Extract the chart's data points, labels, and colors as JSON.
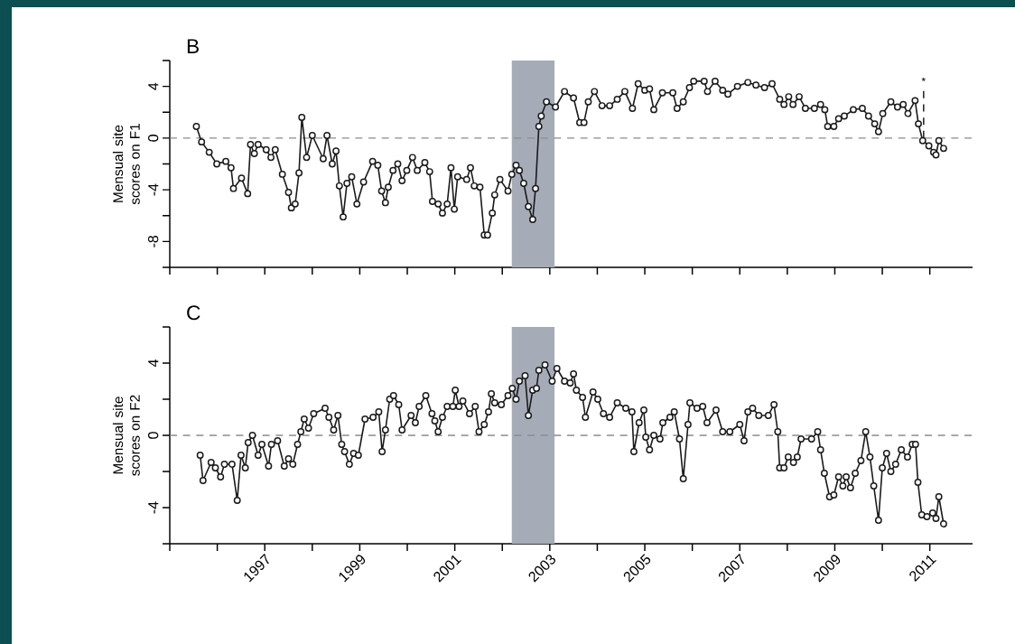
{
  "chart_data": [
    {
      "type": "line",
      "title": "B",
      "ylabel": "Mensual site scores on F1",
      "marker": "circle",
      "line_style": "solid",
      "tick_labels": "y",
      "xlim": [
        1995,
        2011.9
      ],
      "ylim": [
        -10,
        6
      ],
      "xticks": [
        {
          "value": 1995,
          "label": null
        },
        {
          "value": 1996,
          "label": null
        },
        1997,
        {
          "value": 1998,
          "label": null
        },
        1999,
        {
          "value": 2000,
          "label": null
        },
        2001,
        {
          "value": 2002,
          "label": null
        },
        2003,
        {
          "value": 2004,
          "label": null
        },
        2005,
        {
          "value": 2006,
          "label": null
        },
        2007,
        {
          "value": 2008,
          "label": null
        },
        2009,
        {
          "value": 2010,
          "label": null
        },
        2011
      ],
      "yticks": [
        {
          "value": -10,
          "label": null
        },
        -8,
        {
          "value": -6,
          "label": null
        },
        -4,
        {
          "value": -2,
          "label": null
        },
        0,
        {
          "value": 2,
          "label": null
        },
        4,
        {
          "value": 6,
          "label": null
        }
      ],
      "bands": [
        {
          "axis": "x",
          "from": 2002.2,
          "to": 2003.1,
          "color": "#a5acb8"
        }
      ],
      "ref_lines": [
        {
          "axis": "y",
          "value": 0,
          "color": "#8c8c8c",
          "line_style": "dashed"
        },
        {
          "axis": "x",
          "value": 2010.87,
          "label": "*",
          "color": "#1a1a1a",
          "line_style": "dashed"
        }
      ],
      "series": [
        {
          "color": "#1a1a1a",
          "x": [
            1995.56,
            1995.67,
            1995.83,
            1995.99,
            1996.18,
            1996.29,
            1996.34,
            1996.51,
            1996.64,
            1996.7,
            1996.78,
            1996.86,
            1997.03,
            1997.13,
            1997.22,
            1997.37,
            1997.5,
            1997.56,
            1997.64,
            1997.72,
            1997.78,
            1997.88,
            1998.0,
            1998.23,
            1998.31,
            1998.42,
            1998.5,
            1998.57,
            1998.65,
            1998.73,
            1998.83,
            1998.94,
            1999.08,
            1999.27,
            1999.38,
            1999.46,
            1999.54,
            1999.6,
            1999.7,
            1999.8,
            1999.89,
            1999.99,
            2000.11,
            2000.21,
            2000.37,
            2000.47,
            2000.53,
            2000.65,
            2000.74,
            2000.84,
            2000.92,
            2000.99,
            2001.06,
            2001.25,
            2001.33,
            2001.41,
            2001.53,
            2001.62,
            2001.69,
            2001.79,
            2001.84,
            2001.95,
            2002.12,
            2002.2,
            2002.29,
            2002.36,
            2002.45,
            2002.55,
            2002.64,
            2002.7,
            2002.77,
            2002.82,
            2002.93,
            2003.12,
            2003.31,
            2003.5,
            2003.63,
            2003.72,
            2003.81,
            2003.94,
            2004.1,
            2004.26,
            2004.42,
            2004.58,
            2004.74,
            2004.86,
            2005.0,
            2005.1,
            2005.19,
            2005.37,
            2005.59,
            2005.68,
            2005.81,
            2005.94,
            2006.03,
            2006.25,
            2006.32,
            2006.48,
            2006.64,
            2006.75,
            2006.95,
            2007.17,
            2007.34,
            2007.52,
            2007.68,
            2007.84,
            2007.93,
            2008.03,
            2008.12,
            2008.25,
            2008.38,
            2008.57,
            2008.7,
            2008.79,
            2008.85,
            2008.98,
            2009.08,
            2009.2,
            2009.39,
            2009.58,
            2009.71,
            2009.84,
            2009.92,
            2010.01,
            2010.18,
            2010.32,
            2010.44,
            2010.54,
            2010.69,
            2010.76,
            2010.85,
            2010.98,
            2011.08,
            2011.13,
            2011.19,
            2011.29
          ],
          "values": [
            0.9,
            -0.3,
            -1.1,
            -2.0,
            -1.8,
            -2.3,
            -3.9,
            -3.1,
            -4.3,
            -0.5,
            -1.2,
            -0.5,
            -0.9,
            -1.5,
            -0.9,
            -2.8,
            -4.2,
            -5.4,
            -5.1,
            -2.7,
            1.6,
            -1.5,
            0.2,
            -1.6,
            0.2,
            -2.0,
            -1.0,
            -3.7,
            -6.1,
            -3.5,
            -3.0,
            -5.1,
            -3.4,
            -1.8,
            -2.1,
            -4.1,
            -5.0,
            -3.8,
            -2.5,
            -2.0,
            -3.3,
            -2.5,
            -1.5,
            -2.5,
            -1.9,
            -2.6,
            -4.9,
            -5.1,
            -5.8,
            -5.1,
            -2.3,
            -5.5,
            -3.0,
            -3.2,
            -2.3,
            -3.7,
            -3.8,
            -7.5,
            -7.5,
            -5.8,
            -4.4,
            -3.2,
            -4.1,
            -2.8,
            -2.1,
            -2.5,
            -3.5,
            -5.3,
            -6.3,
            -3.9,
            0.9,
            1.7,
            2.8,
            2.4,
            3.6,
            3.1,
            1.2,
            1.2,
            2.8,
            3.6,
            2.5,
            2.5,
            3.0,
            3.6,
            2.3,
            4.2,
            3.7,
            3.8,
            2.2,
            3.5,
            3.5,
            2.3,
            2.8,
            3.9,
            4.4,
            4.4,
            3.6,
            4.4,
            3.7,
            3.4,
            4.0,
            4.3,
            4.1,
            3.9,
            4.2,
            3.0,
            2.6,
            3.2,
            2.6,
            3.2,
            2.3,
            2.3,
            2.6,
            2.2,
            0.9,
            0.9,
            1.5,
            1.7,
            2.2,
            2.3,
            1.7,
            1.1,
            0.5,
            1.9,
            2.8,
            2.4,
            2.6,
            1.9,
            2.9,
            1.1,
            -0.2,
            -0.6,
            -1.1,
            -1.3,
            -0.2,
            -0.8
          ]
        }
      ]
    },
    {
      "type": "line",
      "title": "C",
      "ylabel": "Mensual site scores on F2",
      "marker": "circle",
      "line_style": "solid",
      "xlim": [
        1995,
        2011.9
      ],
      "ylim": [
        -6,
        6
      ],
      "xticks": [
        {
          "value": 1995,
          "label": null
        },
        {
          "value": 1996,
          "label": null
        },
        1997,
        {
          "value": 1998,
          "label": null
        },
        1999,
        {
          "value": 2000,
          "label": null
        },
        2001,
        {
          "value": 2002,
          "label": null
        },
        2003,
        {
          "value": 2004,
          "label": null
        },
        2005,
        {
          "value": 2006,
          "label": null
        },
        2007,
        {
          "value": 2008,
          "label": null
        },
        2009,
        {
          "value": 2010,
          "label": null
        },
        2011
      ],
      "yticks": [
        {
          "value": -6,
          "label": null
        },
        -4,
        {
          "value": -2,
          "label": null
        },
        0,
        {
          "value": 2,
          "label": null
        },
        4,
        {
          "value": 6,
          "label": null
        }
      ],
      "bands": [
        {
          "axis": "x",
          "from": 2002.2,
          "to": 2003.1,
          "color": "#a5acb8"
        }
      ],
      "ref_lines": [
        {
          "axis": "y",
          "value": 0,
          "color": "#8c8c8c",
          "line_style": "dashed"
        }
      ],
      "series": [
        {
          "color": "#1a1a1a",
          "x": [
            1995.64,
            1995.7,
            1995.87,
            1995.96,
            1996.07,
            1996.15,
            1996.31,
            1996.42,
            1996.5,
            1996.59,
            1996.65,
            1996.74,
            1996.86,
            1996.94,
            1997.08,
            1997.14,
            1997.27,
            1997.41,
            1997.5,
            1997.59,
            1997.69,
            1997.76,
            1997.83,
            1997.92,
            1998.03,
            1998.27,
            1998.35,
            1998.45,
            1998.54,
            1998.62,
            1998.68,
            1998.78,
            1998.87,
            1998.97,
            1999.11,
            1999.28,
            1999.4,
            1999.47,
            1999.54,
            1999.63,
            1999.71,
            1999.82,
            1999.89,
            2000.08,
            2000.17,
            2000.25,
            2000.39,
            2000.52,
            2000.58,
            2000.65,
            2000.74,
            2000.84,
            2000.96,
            2001.01,
            2001.09,
            2001.17,
            2001.31,
            2001.43,
            2001.51,
            2001.62,
            2001.71,
            2001.77,
            2001.84,
            2001.98,
            2002.12,
            2002.21,
            2002.29,
            2002.36,
            2002.48,
            2002.55,
            2002.64,
            2002.72,
            2002.77,
            2002.9,
            2003.05,
            2003.15,
            2003.31,
            2003.43,
            2003.5,
            2003.56,
            2003.69,
            2003.75,
            2003.91,
            2004.01,
            2004.13,
            2004.26,
            2004.42,
            2004.6,
            2004.73,
            2004.77,
            2004.88,
            2004.98,
            2005.02,
            2005.1,
            2005.19,
            2005.32,
            2005.38,
            2005.53,
            2005.62,
            2005.73,
            2005.81,
            2005.91,
            2005.95,
            2006.1,
            2006.22,
            2006.31,
            2006.5,
            2006.64,
            2006.79,
            2007.0,
            2007.09,
            2007.17,
            2007.27,
            2007.4,
            2007.6,
            2007.72,
            2007.8,
            2007.84,
            2007.93,
            2008.02,
            2008.13,
            2008.21,
            2008.29,
            2008.51,
            2008.64,
            2008.7,
            2008.78,
            2008.89,
            2008.98,
            2009.08,
            2009.17,
            2009.24,
            2009.33,
            2009.43,
            2009.55,
            2009.65,
            2009.74,
            2009.82,
            2009.92,
            2010.0,
            2010.09,
            2010.18,
            2010.28,
            2010.4,
            2010.53,
            2010.63,
            2010.7,
            2010.75,
            2010.83,
            2010.94,
            2011.06,
            2011.13,
            2011.19,
            2011.29
          ],
          "values": [
            -1.1,
            -2.5,
            -1.5,
            -1.8,
            -2.3,
            -1.6,
            -1.6,
            -3.6,
            -1.1,
            -1.8,
            -0.4,
            0.0,
            -1.1,
            -0.5,
            -1.7,
            -0.5,
            -0.3,
            -1.7,
            -1.3,
            -1.6,
            -0.5,
            0.2,
            0.9,
            0.4,
            1.2,
            1.5,
            1.0,
            0.3,
            1.1,
            -0.5,
            -0.9,
            -1.6,
            -1.0,
            -1.1,
            0.9,
            1.0,
            1.3,
            -0.9,
            0.3,
            2.0,
            2.2,
            1.7,
            0.3,
            1.1,
            0.7,
            1.6,
            2.2,
            1.2,
            0.8,
            0.2,
            1.0,
            1.6,
            1.6,
            2.5,
            1.6,
            1.9,
            1.2,
            1.6,
            0.2,
            0.6,
            1.3,
            2.3,
            1.8,
            1.7,
            2.2,
            2.6,
            2.0,
            3.0,
            3.3,
            1.1,
            2.5,
            2.6,
            3.6,
            3.9,
            3.0,
            3.7,
            3.0,
            2.9,
            3.4,
            2.5,
            2.1,
            1.0,
            2.4,
            2.0,
            1.2,
            1.0,
            1.8,
            1.5,
            1.3,
            -0.9,
            0.7,
            1.4,
            -0.1,
            -0.8,
            0.0,
            -0.2,
            0.7,
            1.0,
            1.3,
            -0.2,
            -2.4,
            0.6,
            1.8,
            1.5,
            1.6,
            0.7,
            1.4,
            0.2,
            0.2,
            0.6,
            -0.3,
            1.3,
            1.5,
            1.1,
            1.1,
            1.7,
            0.2,
            -1.8,
            -1.8,
            -1.2,
            -1.5,
            -1.2,
            -0.2,
            -0.2,
            0.2,
            -0.8,
            -2.1,
            -3.4,
            -3.3,
            -2.3,
            -2.8,
            -2.3,
            -2.9,
            -2.1,
            -1.4,
            0.2,
            -1.2,
            -2.8,
            -4.7,
            -1.8,
            -1.0,
            -2.0,
            -1.6,
            -0.8,
            -1.2,
            -0.5,
            -0.5,
            -2.6,
            -4.4,
            -4.5,
            -4.3,
            -4.6,
            -3.4,
            -4.9
          ]
        }
      ]
    }
  ]
}
